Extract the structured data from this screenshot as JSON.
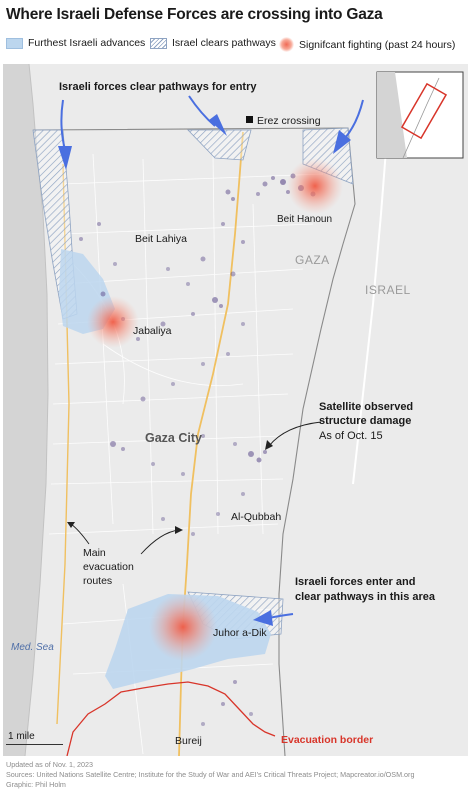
{
  "title": "Where Israeli Defense Forces are crossing into Gaza",
  "legend": {
    "advances": "Furthest Israeli advances",
    "pathways": "Israel clears pathways",
    "fighting": "Signifcant fighting (past 24 hours)"
  },
  "annotations": {
    "clear_pathways_entry": "Israeli forces clear pathways for entry",
    "satellite_line1": "Satellite observed",
    "satellite_line2": "structure damage",
    "satellite_date": "As of Oct. 15",
    "evacuation_line1": "Main",
    "evacuation_line2": "evacuation",
    "evacuation_line3": "routes",
    "enter_line1": "Israeli forces enter and",
    "enter_line2": "clear pathways in this area",
    "evacuation_border": "Evacuation border"
  },
  "places": {
    "erez": "Erez crossing",
    "beit_hanoun": "Beit Hanoun",
    "beit_lahiya": "Beit Lahiya",
    "gaza_region": "GAZA",
    "israel": "ISRAEL",
    "jabaliya": "Jabaliya",
    "gaza_city": "Gaza City",
    "al_qubbah": "Al-Qubbah",
    "juhor": "Juhor a-Dik",
    "med_sea": "Med. Sea",
    "bureij": "Bureij"
  },
  "scale": {
    "label": "1 mile"
  },
  "footer": {
    "updated": "Updated as of Nov. 1, 2023",
    "sources": "Sources: United Nations Satellite Centre; Institute for the Study of War and AEI's Critical Threats Project; Mapcreator.io/OSM.org",
    "graphic": "Graphic: Phil Holm"
  },
  "colors": {
    "advance_fill": "#bcd6ee",
    "hatch": "#8ea3c2",
    "fighting": "#f05a44",
    "arrow": "#4a6fe0",
    "damage": "#5b4a8a",
    "evacuation_border": "#d8352a",
    "road": "#f0c060",
    "sea": "#d6d6d6"
  }
}
